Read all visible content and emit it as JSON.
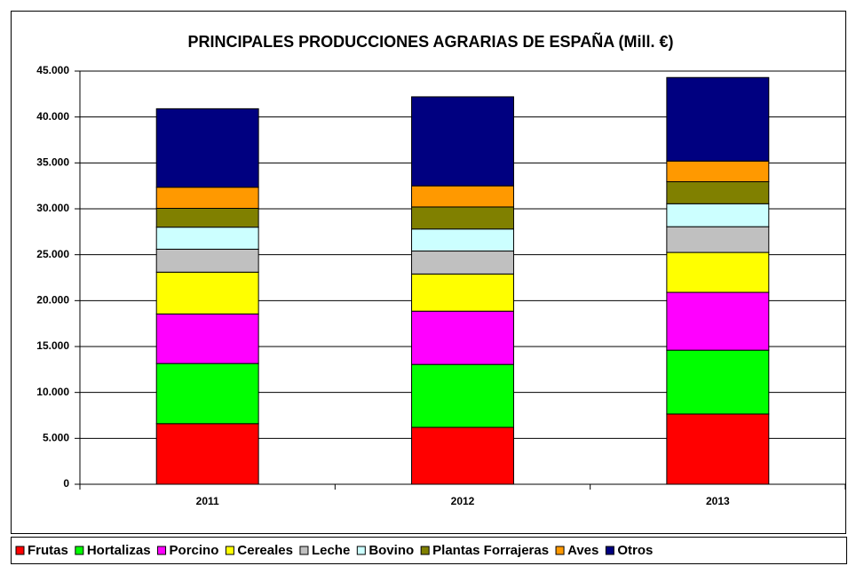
{
  "chart_data": {
    "type": "stacked_bar",
    "title": "PRINCIPALES PRODUCCIONES AGRARIAS DE ESPAÑA (Mill. €)",
    "categories": [
      "2011",
      "2012",
      "2013"
    ],
    "series": [
      {
        "name": "Frutas",
        "color": "#ff0000",
        "values": [
          6600,
          6200,
          7650
        ]
      },
      {
        "name": "Hortalizas",
        "color": "#00ff00",
        "values": [
          6550,
          6850,
          6950
        ]
      },
      {
        "name": "Porcino",
        "color": "#ff00ff",
        "values": [
          5400,
          5800,
          6300
        ]
      },
      {
        "name": "Cereales",
        "color": "#ffff00",
        "values": [
          4550,
          4050,
          4350
        ]
      },
      {
        "name": "Leche",
        "color": "#c0c0c0",
        "values": [
          2500,
          2500,
          2800
        ]
      },
      {
        "name": "Bovino",
        "color": "#ccffff",
        "values": [
          2400,
          2400,
          2500
        ]
      },
      {
        "name": "Plantas Forrajeras",
        "color": "#808000",
        "values": [
          2050,
          2400,
          2400
        ]
      },
      {
        "name": "Aves",
        "color": "#ff9900",
        "values": [
          2300,
          2300,
          2250
        ]
      },
      {
        "name": "Otros",
        "color": "#000080",
        "values": [
          8550,
          9700,
          9100
        ]
      }
    ],
    "ylim": [
      0,
      45000
    ],
    "yticks": [
      0,
      {
        "value": 5000,
        "label": "5.000"
      },
      {
        "value": 10000,
        "label": "10.000"
      },
      {
        "value": 15000,
        "label": "15.000"
      },
      {
        "value": 20000,
        "label": "20.000"
      },
      {
        "value": 25000,
        "label": "25.000"
      },
      {
        "value": 30000,
        "label": "30.000"
      },
      {
        "value": 35000,
        "label": "35.000"
      },
      {
        "value": 40000,
        "label": "40.000"
      },
      {
        "value": 45000,
        "label": "45.000"
      }
    ],
    "grid": true,
    "legend": "bottom"
  }
}
